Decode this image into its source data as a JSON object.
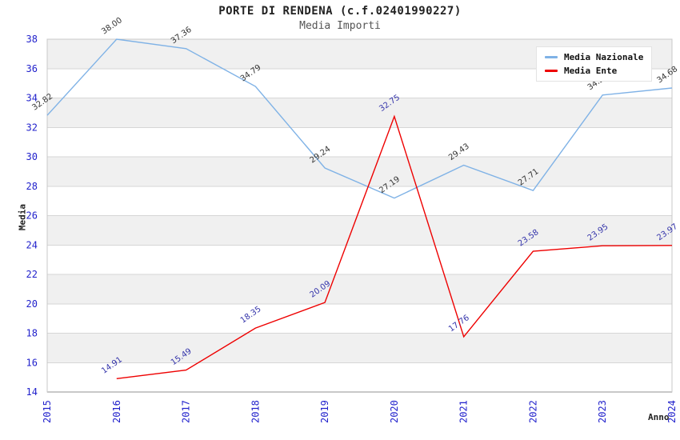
{
  "header": {
    "title": "PORTE DI RENDENA (c.f.02401990227)",
    "subtitle": "Media Importi"
  },
  "axes": {
    "y_label": "Media",
    "x_label": "Anno",
    "y_ticks": [
      38,
      36,
      34,
      32,
      30,
      28,
      26,
      24,
      22,
      20,
      18,
      16,
      14
    ],
    "x_ticks": [
      "2015",
      "2016",
      "2017",
      "2018",
      "2019",
      "2020",
      "2021",
      "2022",
      "2023",
      "2024"
    ]
  },
  "legend": {
    "items": [
      {
        "label": "Media Nazionale",
        "color": "#7fb2e6"
      },
      {
        "label": "Media Ente",
        "color": "#ee0000"
      }
    ]
  },
  "colors": {
    "tick_label": "#2222cc",
    "band_fill": "#f0f0f0",
    "grid_line": "#d6d6d6",
    "frame": "#c8c8c8",
    "background": "#ffffff",
    "blue_series_label": "#333333",
    "red_series_label": "#3333aa"
  },
  "chart_data": {
    "type": "line",
    "title": "PORTE DI RENDENA (c.f.02401990227)",
    "subtitle": "Media Importi",
    "xlabel": "Anno",
    "ylabel": "Media",
    "ylim": [
      14,
      38
    ],
    "y_tick_step": 2,
    "x_categories": [
      "2015",
      "2016",
      "2017",
      "2018",
      "2019",
      "2020",
      "2021",
      "2022",
      "2023",
      "2024"
    ],
    "grid": "horizontal-bands",
    "legend_position": "top-right",
    "series": [
      {
        "name": "Media Nazionale",
        "color": "#7fb2e6",
        "label_color": "#333333",
        "x": [
          "2015",
          "2016",
          "2017",
          "2018",
          "2019",
          "2020",
          "2021",
          "2022",
          "2023",
          "2024"
        ],
        "values": [
          32.82,
          38.0,
          37.36,
          34.79,
          29.24,
          27.19,
          29.43,
          27.71,
          34.2,
          34.68
        ],
        "labels": [
          "32.82",
          "38.00",
          "37.36",
          "34.79",
          "29.24",
          "27.19",
          "29.43",
          "27.71",
          "34.2",
          "34.68"
        ]
      },
      {
        "name": "Media Ente",
        "color": "#ee0000",
        "label_color": "#3333aa",
        "x": [
          "2016",
          "2017",
          "2018",
          "2019",
          "2020",
          "2021",
          "2022",
          "2023",
          "2024"
        ],
        "values": [
          14.91,
          15.49,
          18.35,
          20.09,
          32.75,
          17.76,
          23.58,
          23.95,
          23.97
        ],
        "labels": [
          "14.91",
          "15.49",
          "18.35",
          "20.09",
          "32.75",
          "17.76",
          "23.58",
          "23.95",
          "23.97"
        ]
      }
    ]
  }
}
